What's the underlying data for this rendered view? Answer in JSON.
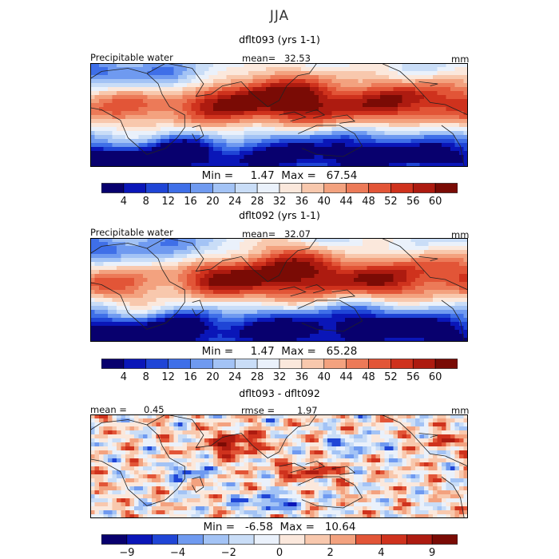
{
  "season": "JJA",
  "colors": {
    "scale": [
      "#08006e",
      "#0a16b8",
      "#1f45d6",
      "#3f6fe8",
      "#6f9af0",
      "#a3c3f5",
      "#c9ddf7",
      "#eaf1fb",
      "#fbe8dc",
      "#f8c8ad",
      "#f3a27f",
      "#ec7a58",
      "#e25537",
      "#cf321d",
      "#ad1b10",
      "#7a0b05"
    ]
  },
  "panels": [
    {
      "title": "dflt093 (yrs 1-1)",
      "variable": "Precipitable water",
      "mean_label": "mean=",
      "mean_value": "32.53",
      "units": "mm",
      "stats": "Min =     1.47  Max =   67.54",
      "colorbar_ticks": [
        "4",
        "8",
        "12",
        "16",
        "20",
        "24",
        "28",
        "32",
        "36",
        "40",
        "44",
        "48",
        "52",
        "56",
        "60"
      ]
    },
    {
      "title": "dflt092 (yrs 1-1)",
      "variable": "Precipitable water",
      "mean_label": "mean=",
      "mean_value": "32.07",
      "units": "mm",
      "stats": "Min =     1.47  Max =   65.28",
      "colorbar_ticks": [
        "4",
        "8",
        "12",
        "16",
        "20",
        "24",
        "28",
        "32",
        "36",
        "40",
        "44",
        "48",
        "52",
        "56",
        "60"
      ]
    },
    {
      "title": "dflt093 - dflt092",
      "mean_label": "mean =",
      "mean_value": "0.45",
      "rmse_label": "rmse =",
      "rmse_value": "1.97",
      "units": "mm",
      "stats": "Min =   -6.58  Max =   10.64",
      "colorbar_ticks": [
        "−9",
        "",
        "−4",
        "",
        "−2",
        "",
        "0",
        "",
        "2",
        "",
        "4",
        "",
        "9",
        ""
      ]
    }
  ],
  "chart_data": [
    {
      "type": "heatmap",
      "title": "dflt093 (yrs 1-1)",
      "variable": "Precipitable water",
      "units": "mm",
      "mean": 32.53,
      "min": 1.47,
      "max": 67.54,
      "colorbar_levels": [
        4,
        8,
        12,
        16,
        20,
        24,
        28,
        32,
        36,
        40,
        44,
        48,
        52,
        56,
        60
      ],
      "lon_range": [
        0,
        360
      ],
      "lat_range": [
        -45,
        45
      ],
      "field": "zonal_band"
    },
    {
      "type": "heatmap",
      "title": "dflt092 (yrs 1-1)",
      "variable": "Precipitable water",
      "units": "mm",
      "mean": 32.07,
      "min": 1.47,
      "max": 65.28,
      "colorbar_levels": [
        4,
        8,
        12,
        16,
        20,
        24,
        28,
        32,
        36,
        40,
        44,
        48,
        52,
        56,
        60
      ],
      "lon_range": [
        0,
        360
      ],
      "lat_range": [
        -45,
        45
      ],
      "field": "zonal_band"
    },
    {
      "type": "heatmap",
      "title": "dflt093 - dflt092",
      "units": "mm",
      "mean": 0.45,
      "rmse": 1.97,
      "min": -6.58,
      "max": 10.64,
      "colorbar_levels": [
        -9,
        -6,
        -4,
        -3,
        -2,
        -1,
        0,
        1,
        2,
        3,
        4,
        6,
        9
      ],
      "lon_range": [
        0,
        360
      ],
      "lat_range": [
        -45,
        45
      ],
      "field": "difference"
    }
  ]
}
